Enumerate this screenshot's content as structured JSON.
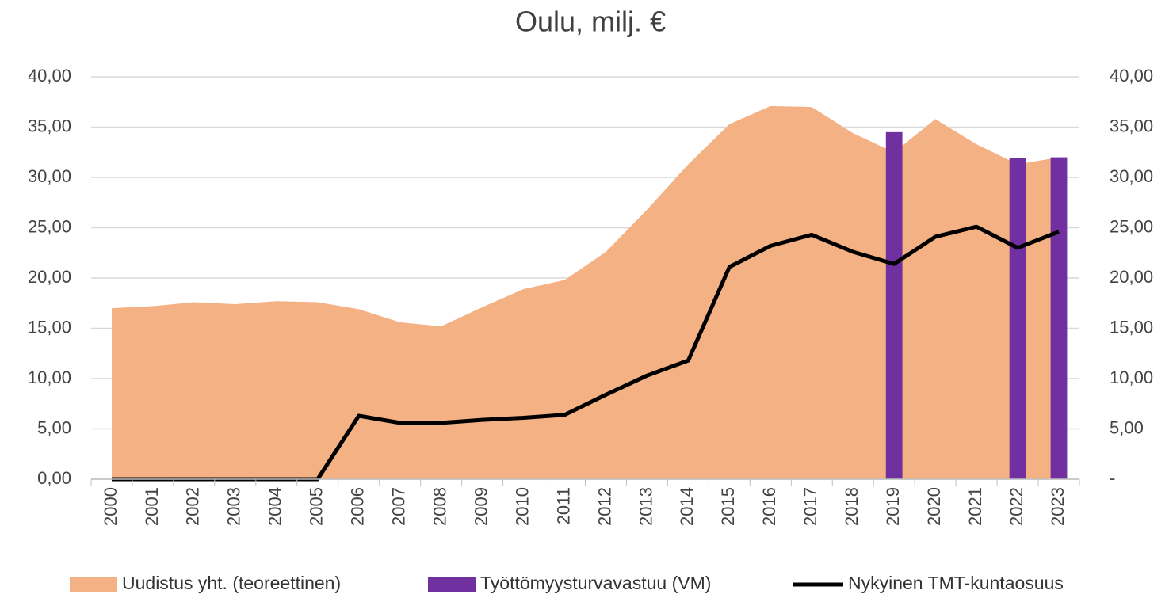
{
  "chart_data": {
    "type": "combo",
    "title": "Oulu, milj. €",
    "categories": [
      "2000",
      "2001",
      "2002",
      "2003",
      "2004",
      "2005",
      "2006",
      "2007",
      "2008",
      "2009",
      "2010",
      "2011",
      "2012",
      "2013",
      "2014",
      "2015",
      "2016",
      "2017",
      "2018",
      "2019",
      "2020",
      "2021",
      "2022",
      "2023"
    ],
    "series": [
      {
        "name": "Uudistus yht. (teoreettinen)",
        "type": "area",
        "color": "#f4b183",
        "values": [
          17.0,
          17.2,
          17.6,
          17.4,
          17.7,
          17.6,
          16.9,
          15.6,
          15.2,
          17.1,
          18.9,
          19.8,
          22.6,
          26.8,
          31.3,
          35.3,
          37.1,
          37.0,
          34.4,
          32.5,
          35.8,
          33.3,
          31.3,
          32.0
        ]
      },
      {
        "name": "Työttömyysturvavastuu (VM)",
        "type": "bar",
        "color": "#7030a0",
        "axis": "y2",
        "values": [
          null,
          null,
          null,
          null,
          null,
          null,
          null,
          null,
          null,
          null,
          null,
          null,
          null,
          null,
          null,
          null,
          null,
          null,
          null,
          34.5,
          null,
          null,
          31.9,
          32.0
        ]
      },
      {
        "name": "Nykyinen TMT-kuntaosuus",
        "type": "line",
        "color": "#000000",
        "values": [
          0,
          0,
          0,
          0,
          0,
          0,
          6.3,
          5.6,
          5.6,
          5.9,
          6.1,
          6.4,
          8.4,
          10.3,
          11.8,
          21.1,
          23.2,
          24.3,
          22.6,
          21.4,
          24.1,
          25.1,
          23.0,
          24.6
        ]
      }
    ],
    "ylim": [
      0,
      40
    ],
    "yticks": [
      {
        "value": 0,
        "label": "0,00"
      },
      {
        "value": 5,
        "label": "5,00"
      },
      {
        "value": 10,
        "label": "10,00"
      },
      {
        "value": 15,
        "label": "15,00"
      },
      {
        "value": 20,
        "label": "20,00"
      },
      {
        "value": 25,
        "label": "25,00"
      },
      {
        "value": 30,
        "label": "30,00"
      },
      {
        "value": 35,
        "label": "35,00"
      },
      {
        "value": 40,
        "label": "40,00"
      }
    ],
    "y2lim": [
      0,
      40
    ],
    "y2ticks": [
      {
        "value": 0,
        "label": "-"
      },
      {
        "value": 5,
        "label": "5,00"
      },
      {
        "value": 10,
        "label": "10,00"
      },
      {
        "value": 15,
        "label": "15,00"
      },
      {
        "value": 20,
        "label": "20,00"
      },
      {
        "value": 25,
        "label": "25,00"
      },
      {
        "value": 30,
        "label": "30,00"
      },
      {
        "value": 35,
        "label": "35,00"
      },
      {
        "value": 40,
        "label": "40,00"
      }
    ],
    "grid": true,
    "legend": "bottom"
  }
}
